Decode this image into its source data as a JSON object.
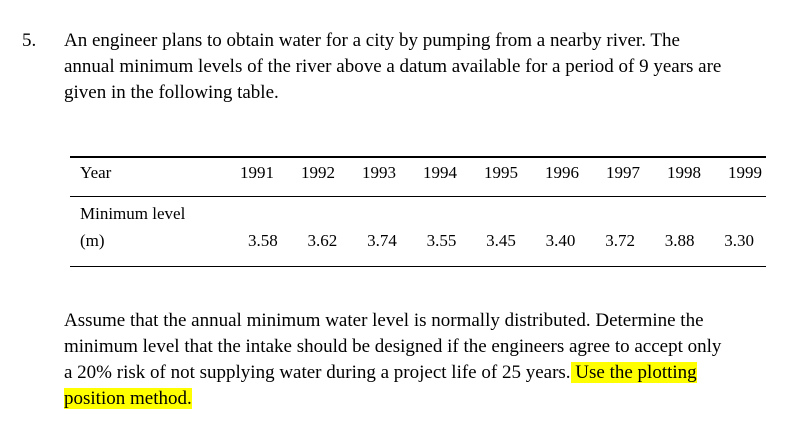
{
  "question": {
    "number": "5.",
    "intro_lines": [
      "An engineer plans to obtain water for a city by pumping from a nearby river. The",
      "annual minimum levels of the river above a datum available for a period of 9 years are",
      "given in the following table."
    ]
  },
  "table": {
    "header_year": "Year",
    "header_level_line1": "Minimum level",
    "header_level_line2": "(m)",
    "years": [
      "1991",
      "1992",
      "1993",
      "1994",
      "1995",
      "1996",
      "1997",
      "1998",
      "1999"
    ],
    "levels": [
      "3.58",
      "3.62",
      "3.74",
      "3.55",
      "3.45",
      "3.40",
      "3.72",
      "3.88",
      "3.30"
    ]
  },
  "assumption": {
    "line1": "Assume that the annual minimum water level is normally distributed. Determine the",
    "line2": "minimum level that the intake should be designed if the engineers agree to accept only",
    "line3_plain": "a 20% risk of not supplying water during a project life of 25 years",
    "line3_period": ".",
    "line3_highlight": " Use the plotting",
    "line4_highlight": "position method."
  },
  "colors": {
    "highlight": "#ffff00",
    "text": "#000000"
  }
}
